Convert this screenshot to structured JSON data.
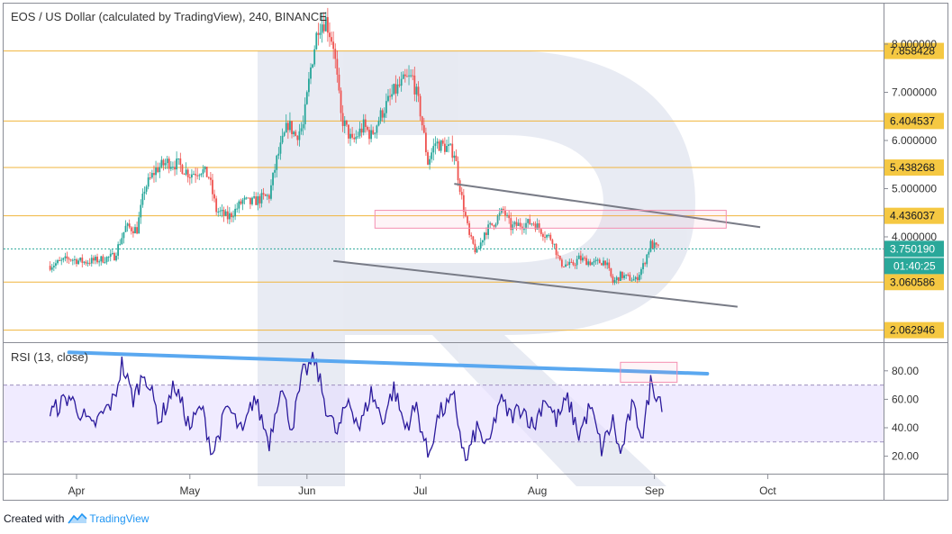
{
  "title": "EOS / US Dollar (calculated by TradingView), 240, BINANCE",
  "rsi_label": "RSI (13, close)",
  "footer": {
    "created_with": "Created with",
    "brand": "TradingView"
  },
  "colors": {
    "level_line": "#f0b43c",
    "level_badge": "#f5c842",
    "current_badge": "#2aa89a",
    "candle_up": "#26a69a",
    "candle_down": "#ef5350",
    "channel": "#787b86",
    "rsi_line": "#2b1a9c",
    "rsi_band": "#e6ddff",
    "trend": "#5aa8f0",
    "box": "#f48fb1"
  },
  "chart_data": [
    {
      "type": "candlestick",
      "x_ticks": [
        "Apr",
        "May",
        "Jun",
        "Jul",
        "Aug",
        "Sep",
        "Oct"
      ],
      "y_ticks": [
        "4.000000",
        "5.000000",
        "6.000000",
        "7.000000",
        "8.000000"
      ],
      "levels": [
        "7.858428",
        "6.404537",
        "5.438268",
        "4.436037",
        "3.060586",
        "2.062946"
      ],
      "current_price": "3.750190",
      "countdown": "01:40:25",
      "ohlc_path": [
        [
          -7,
          3.4
        ],
        [
          -2,
          3.55
        ],
        [
          2,
          3.48
        ],
        [
          6,
          3.52
        ],
        [
          10,
          3.6
        ],
        [
          13,
          4.2
        ],
        [
          16,
          4.15
        ],
        [
          18,
          5.0
        ],
        [
          21,
          5.4
        ],
        [
          24,
          5.55
        ],
        [
          27,
          5.5
        ],
        [
          30,
          5.3
        ],
        [
          33,
          5.4
        ],
        [
          35,
          5.25
        ],
        [
          37,
          4.55
        ],
        [
          40,
          4.4
        ],
        [
          42,
          4.55
        ],
        [
          44,
          4.75
        ],
        [
          46,
          4.7
        ],
        [
          49,
          4.8
        ],
        [
          51,
          4.85
        ],
        [
          53,
          5.6
        ],
        [
          56,
          6.35
        ],
        [
          58,
          6.1
        ],
        [
          60,
          6.3
        ],
        [
          62,
          7.5
        ],
        [
          64,
          8.4
        ],
        [
          66,
          8.5
        ],
        [
          68,
          8.0
        ],
        [
          70,
          6.5
        ],
        [
          73,
          5.95
        ],
        [
          76,
          6.3
        ],
        [
          78,
          6.1
        ],
        [
          81,
          6.6
        ],
        [
          84,
          7.0
        ],
        [
          87,
          7.25
        ],
        [
          89,
          7.3
        ],
        [
          91,
          6.6
        ],
        [
          93,
          5.55
        ],
        [
          95,
          5.95
        ],
        [
          98,
          5.85
        ],
        [
          100,
          5.75
        ],
        [
          102,
          4.8
        ],
        [
          104,
          4.0
        ],
        [
          106,
          3.65
        ],
        [
          108,
          4.1
        ],
        [
          110,
          4.25
        ],
        [
          113,
          4.55
        ],
        [
          115,
          4.2
        ],
        [
          117,
          4.25
        ],
        [
          121,
          4.3
        ],
        [
          124,
          4.05
        ],
        [
          126,
          3.95
        ],
        [
          128,
          3.45
        ],
        [
          131,
          3.4
        ],
        [
          133,
          3.55
        ],
        [
          137,
          3.45
        ],
        [
          140,
          3.5
        ],
        [
          142,
          3.05
        ],
        [
          144,
          3.2
        ],
        [
          146,
          3.15
        ],
        [
          148,
          3.1
        ],
        [
          150,
          3.4
        ],
        [
          152,
          3.85
        ],
        [
          154,
          3.75
        ]
      ],
      "channel_upper": [
        [
          100,
          5.1
        ],
        [
          181,
          4.2
        ]
      ],
      "channel_lower": [
        [
          68,
          3.5
        ],
        [
          175,
          2.55
        ]
      ],
      "resistance_box": {
        "x": [
          79,
          172
        ],
        "y": [
          4.18,
          4.55
        ]
      }
    },
    {
      "type": "line",
      "name": "RSI (13, close)",
      "y_ticks": [
        "20.00",
        "40.00",
        "60.00",
        "80.00"
      ],
      "band": [
        30,
        70
      ],
      "ylim": [
        10,
        95
      ],
      "rsi_path": [
        [
          -7,
          50
        ],
        [
          -2,
          62
        ],
        [
          4,
          40
        ],
        [
          10,
          60
        ],
        [
          12,
          85
        ],
        [
          15,
          60
        ],
        [
          18,
          80
        ],
        [
          22,
          45
        ],
        [
          26,
          70
        ],
        [
          30,
          40
        ],
        [
          33,
          55
        ],
        [
          36,
          22
        ],
        [
          40,
          55
        ],
        [
          44,
          35
        ],
        [
          47,
          62
        ],
        [
          51,
          30
        ],
        [
          54,
          70
        ],
        [
          57,
          40
        ],
        [
          60,
          78
        ],
        [
          63,
          88
        ],
        [
          66,
          55
        ],
        [
          69,
          35
        ],
        [
          72,
          60
        ],
        [
          75,
          40
        ],
        [
          78,
          65
        ],
        [
          81,
          45
        ],
        [
          84,
          68
        ],
        [
          87,
          40
        ],
        [
          90,
          55
        ],
        [
          93,
          20
        ],
        [
          96,
          50
        ],
        [
          100,
          60
        ],
        [
          103,
          15
        ],
        [
          106,
          40
        ],
        [
          109,
          25
        ],
        [
          112,
          60
        ],
        [
          115,
          48
        ],
        [
          118,
          55
        ],
        [
          121,
          40
        ],
        [
          124,
          62
        ],
        [
          127,
          45
        ],
        [
          130,
          60
        ],
        [
          133,
          35
        ],
        [
          136,
          55
        ],
        [
          139,
          25
        ],
        [
          142,
          45
        ],
        [
          144,
          20
        ],
        [
          147,
          55
        ],
        [
          150,
          35
        ],
        [
          152,
          72
        ],
        [
          155,
          58
        ]
      ],
      "trendline": [
        [
          -2,
          93
        ],
        [
          167,
          78
        ]
      ],
      "overbought_box": {
        "x": [
          144,
          159
        ],
        "y": [
          72,
          86
        ]
      }
    }
  ]
}
